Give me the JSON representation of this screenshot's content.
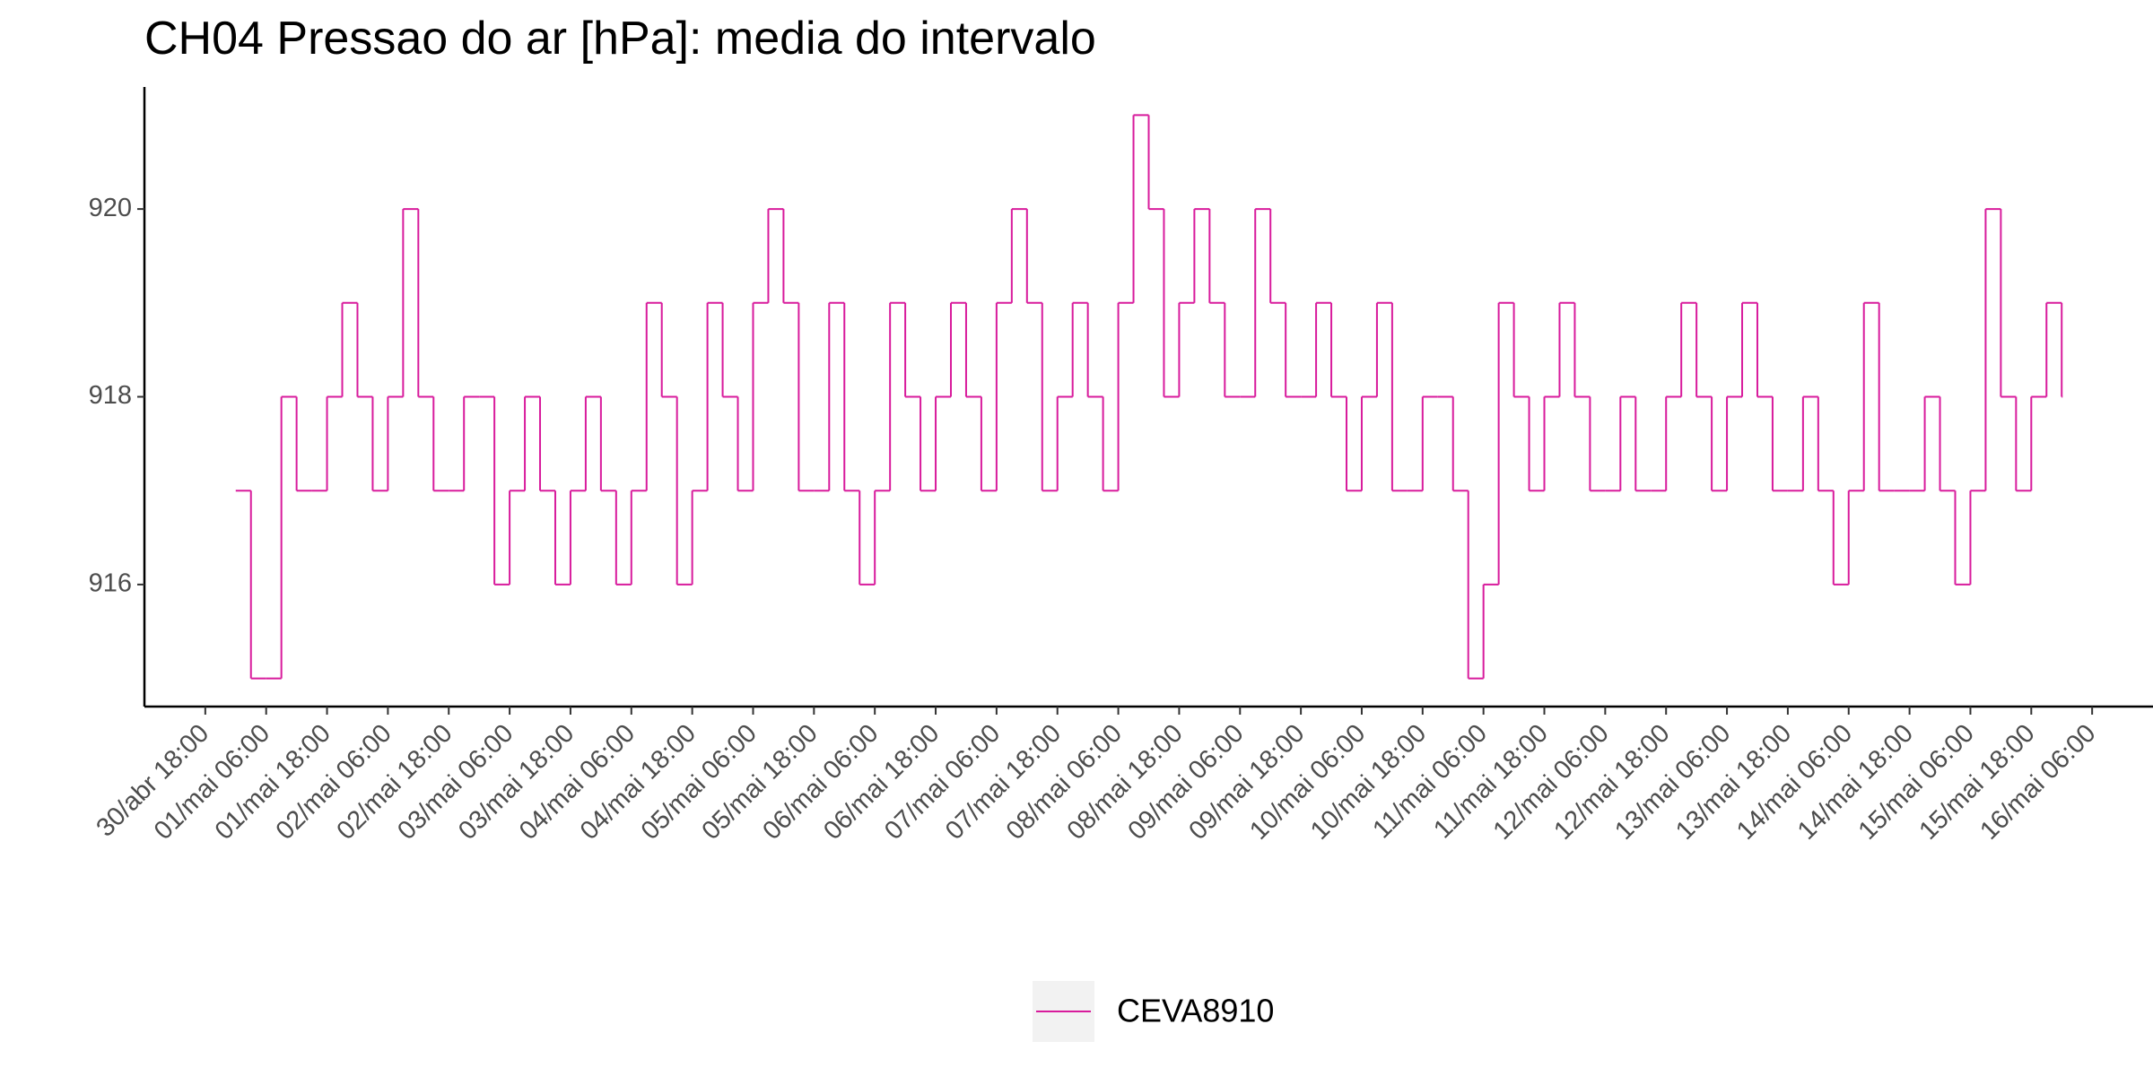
{
  "chart_data": {
    "type": "step",
    "title": "CH04 Pressao do ar [hPa]: media do intervalo",
    "x": [
      "01/mai 00:00",
      "01/mai 03:00",
      "01/mai 06:00",
      "01/mai 09:00",
      "01/mai 12:00",
      "01/mai 15:00",
      "01/mai 18:00",
      "01/mai 21:00",
      "02/mai 00:00",
      "02/mai 03:00",
      "02/mai 06:00",
      "02/mai 09:00",
      "02/mai 12:00",
      "02/mai 15:00",
      "02/mai 18:00",
      "02/mai 21:00",
      "03/mai 00:00",
      "03/mai 03:00",
      "03/mai 06:00",
      "03/mai 09:00",
      "03/mai 12:00",
      "03/mai 15:00",
      "03/mai 18:00",
      "03/mai 21:00",
      "04/mai 00:00",
      "04/mai 03:00",
      "04/mai 06:00",
      "04/mai 09:00",
      "04/mai 12:00",
      "04/mai 15:00",
      "04/mai 18:00",
      "04/mai 21:00",
      "05/mai 00:00",
      "05/mai 03:00",
      "05/mai 06:00",
      "05/mai 09:00",
      "05/mai 12:00",
      "05/mai 15:00",
      "05/mai 18:00",
      "05/mai 21:00",
      "06/mai 00:00",
      "06/mai 03:00",
      "06/mai 06:00",
      "06/mai 09:00",
      "06/mai 12:00",
      "06/mai 15:00",
      "06/mai 18:00",
      "06/mai 21:00",
      "07/mai 00:00",
      "07/mai 03:00",
      "07/mai 06:00",
      "07/mai 09:00",
      "07/mai 12:00",
      "07/mai 15:00",
      "07/mai 18:00",
      "07/mai 21:00",
      "08/mai 00:00",
      "08/mai 03:00",
      "08/mai 06:00",
      "08/mai 09:00",
      "08/mai 12:00",
      "08/mai 15:00",
      "08/mai 18:00",
      "08/mai 21:00",
      "09/mai 00:00",
      "09/mai 03:00",
      "09/mai 06:00",
      "09/mai 09:00",
      "09/mai 12:00",
      "09/mai 15:00",
      "09/mai 18:00",
      "09/mai 21:00",
      "10/mai 00:00",
      "10/mai 03:00",
      "10/mai 06:00",
      "10/mai 09:00",
      "10/mai 12:00",
      "10/mai 15:00",
      "10/mai 18:00",
      "10/mai 21:00",
      "11/mai 00:00",
      "11/mai 03:00",
      "11/mai 06:00",
      "11/mai 09:00",
      "11/mai 12:00",
      "11/mai 15:00",
      "11/mai 18:00",
      "11/mai 21:00",
      "12/mai 00:00",
      "12/mai 03:00",
      "12/mai 06:00",
      "12/mai 09:00",
      "12/mai 12:00",
      "12/mai 15:00",
      "12/mai 18:00",
      "12/mai 21:00",
      "13/mai 00:00",
      "13/mai 03:00",
      "13/mai 06:00",
      "13/mai 09:00",
      "13/mai 12:00",
      "13/mai 15:00",
      "13/mai 18:00",
      "13/mai 21:00",
      "14/mai 00:00",
      "14/mai 03:00",
      "14/mai 06:00",
      "14/mai 09:00",
      "14/mai 12:00",
      "14/mai 15:00",
      "14/mai 18:00",
      "14/mai 21:00",
      "15/mai 00:00",
      "15/mai 03:00",
      "15/mai 06:00",
      "15/mai 09:00",
      "15/mai 12:00",
      "15/mai 15:00",
      "15/mai 18:00",
      "15/mai 21:00",
      "16/mai 00:00"
    ],
    "series": [
      {
        "name": "CEVA8910",
        "color": "#d81b9c",
        "values": [
          917,
          915,
          915,
          918,
          917,
          917,
          918,
          919,
          918,
          917,
          918,
          920,
          918,
          917,
          917,
          918,
          918,
          916,
          917,
          918,
          917,
          916,
          917,
          918,
          917,
          916,
          917,
          919,
          918,
          916,
          917,
          919,
          918,
          917,
          919,
          920,
          919,
          917,
          917,
          919,
          917,
          916,
          917,
          919,
          918,
          917,
          918,
          919,
          918,
          917,
          919,
          920,
          919,
          917,
          918,
          919,
          918,
          917,
          919,
          921,
          920,
          918,
          919,
          920,
          919,
          918,
          918,
          920,
          919,
          918,
          918,
          919,
          918,
          917,
          918,
          919,
          917,
          917,
          918,
          918,
          917,
          915,
          916,
          919,
          918,
          917,
          918,
          919,
          918,
          917,
          917,
          918,
          917,
          917,
          918,
          919,
          918,
          917,
          918,
          919,
          918,
          917,
          917,
          918,
          917,
          916,
          917,
          919,
          917,
          917,
          917,
          918,
          917,
          916,
          917,
          920,
          918,
          917,
          918,
          919,
          918
        ]
      }
    ],
    "xlim": [
      "30/abr 06:00",
      "16/mai 18:00"
    ],
    "xticks": [
      "30/abr 18:00",
      "01/mai 06:00",
      "01/mai 18:00",
      "02/mai 06:00",
      "02/mai 18:00",
      "03/mai 06:00",
      "03/mai 18:00",
      "04/mai 06:00",
      "04/mai 18:00",
      "05/mai 06:00",
      "05/mai 18:00",
      "06/mai 06:00",
      "06/mai 18:00",
      "07/mai 06:00",
      "07/mai 18:00",
      "08/mai 06:00",
      "08/mai 18:00",
      "09/mai 06:00",
      "09/mai 18:00",
      "10/mai 06:00",
      "10/mai 18:00",
      "11/mai 06:00",
      "11/mai 18:00",
      "12/mai 06:00",
      "12/mai 18:00",
      "13/mai 06:00",
      "13/mai 18:00",
      "14/mai 06:00",
      "14/mai 18:00",
      "15/mai 06:00",
      "15/mai 18:00",
      "16/mai 06:00"
    ],
    "ylim": [
      914.7,
      921.3
    ],
    "yticks": [
      916,
      918,
      920
    ],
    "grid": false,
    "legend": "bottom"
  }
}
